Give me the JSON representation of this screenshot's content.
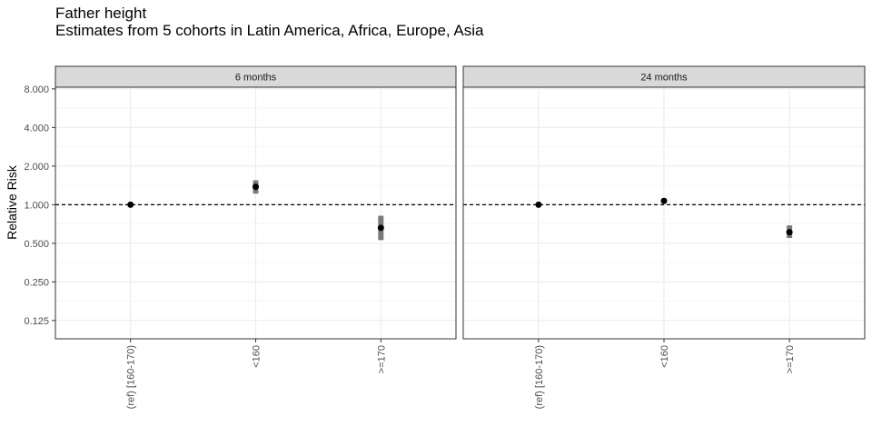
{
  "chart_data": {
    "type": "scatter",
    "title": "Father height",
    "subtitle": "Estimates from 5 cohorts in Latin America, Africa, Europe, Asia",
    "xlabel": "",
    "ylabel": "Relative Risk",
    "y_scale": "log2",
    "ylim": [
      0.09,
      12
    ],
    "y_ticks": [
      0.125,
      0.25,
      0.5,
      1,
      2,
      4,
      8
    ],
    "y_tick_labels": [
      "0.125",
      "0.250",
      "0.500",
      "1.000",
      "2.000",
      "4.000",
      "8.000"
    ],
    "reference_line": 1,
    "grid": true,
    "categories": [
      "(ref) [160-170)",
      "<160",
      ">=170"
    ],
    "panels": [
      {
        "label": "6 months",
        "points": [
          {
            "category": "(ref) [160-170)",
            "estimate": 1.0,
            "ci_lower": 1.0,
            "ci_upper": 1.0
          },
          {
            "category": "<160",
            "estimate": 1.38,
            "ci_lower": 1.22,
            "ci_upper": 1.55
          },
          {
            "category": ">=170",
            "estimate": 0.66,
            "ci_lower": 0.53,
            "ci_upper": 0.82
          }
        ]
      },
      {
        "label": "24 months",
        "points": [
          {
            "category": "(ref) [160-170)",
            "estimate": 1.0,
            "ci_lower": 1.0,
            "ci_upper": 1.0
          },
          {
            "category": "<160",
            "estimate": 1.07,
            "ci_lower": 1.03,
            "ci_upper": 1.12
          },
          {
            "category": ">=170",
            "estimate": 0.61,
            "ci_lower": 0.55,
            "ci_upper": 0.69
          }
        ]
      }
    ]
  }
}
